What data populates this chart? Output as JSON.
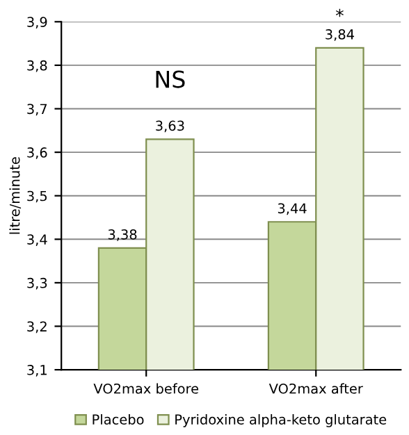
{
  "chart_data": {
    "type": "bar",
    "ylabel": "litre/minute",
    "categories": [
      "VO2max before",
      "VO2max after"
    ],
    "series": [
      {
        "name": "Placebo",
        "color": "#c4d79b",
        "values": [
          3.38,
          3.44
        ],
        "value_labels": [
          "3,38",
          "3,44"
        ]
      },
      {
        "name": "Pyridoxine alpha-keto glutarate",
        "color": "#ebf1de",
        "values": [
          3.63,
          3.84
        ],
        "value_labels": [
          "3,63",
          "3,84"
        ]
      }
    ],
    "ylim": [
      3.1,
      3.9
    ],
    "yticks": [
      {
        "value": 3.1,
        "label": "3,1"
      },
      {
        "value": 3.2,
        "label": "3,2"
      },
      {
        "value": 3.3,
        "label": "3,3"
      },
      {
        "value": 3.4,
        "label": "3,4"
      },
      {
        "value": 3.5,
        "label": "3,5"
      },
      {
        "value": 3.6,
        "label": "3,6"
      },
      {
        "value": 3.7,
        "label": "3,7"
      },
      {
        "value": 3.8,
        "label": "3,8"
      },
      {
        "value": 3.9,
        "label": "3,9"
      }
    ],
    "annotations": [
      "NS",
      "*"
    ],
    "grid": "y",
    "legend": "bottom"
  }
}
